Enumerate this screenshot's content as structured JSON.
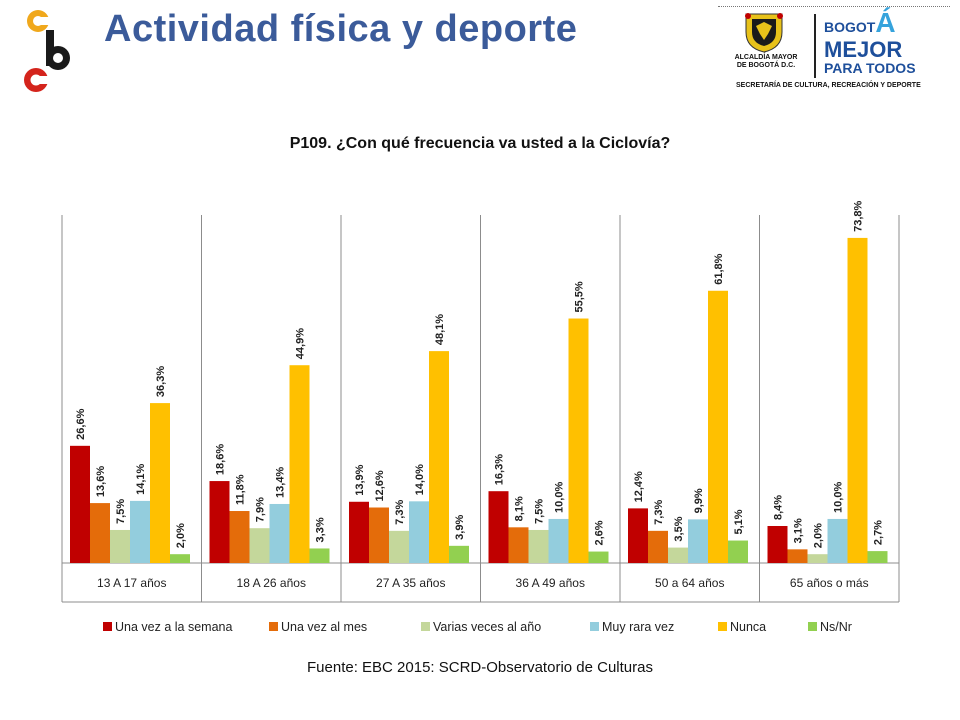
{
  "header": {
    "title": "Actividad física y deporte"
  },
  "logo_right": {
    "alcaldia_line1": "ALCALDÍA MAYOR",
    "alcaldia_line2": "DE BOGOTÁ D.C.",
    "bogota_small": "BOGOT",
    "bogota_accent": "Á",
    "bogota_mid": "MEJOR",
    "bogota_low": "PARA TODOS",
    "secretaria": "SECRETARÍA DE CULTURA, RECREACIÓN Y DEPORTE"
  },
  "chart_data": {
    "type": "bar",
    "title": "P109. ¿Con qué frecuencia va usted a la Ciclovía?",
    "categories": [
      "13 A 17 años",
      "18 A 26 años",
      "27 A 35 años",
      "36 A 49 años",
      "50 a 64 años",
      "65 años o más"
    ],
    "series": [
      {
        "name": "Una vez a la semana",
        "color": "#c00000",
        "values": [
          26.6,
          18.6,
          13.9,
          16.3,
          12.4,
          8.4
        ],
        "labels": [
          "26,6%",
          "18,6%",
          "13,9%",
          "16,3%",
          "12,4%",
          "8,4%"
        ]
      },
      {
        "name": "Una vez al mes",
        "color": "#e46c0a",
        "values": [
          13.6,
          11.8,
          12.6,
          8.1,
          7.3,
          3.1
        ],
        "labels": [
          "13,6%",
          "11,8%",
          "12,6%",
          "8,1%",
          "7,3%",
          "3,1%"
        ]
      },
      {
        "name": "Varias veces al año",
        "color": "#c4d79b",
        "values": [
          7.5,
          7.9,
          7.3,
          7.5,
          3.5,
          2.0
        ],
        "labels": [
          "7,5%",
          "7,9%",
          "7,3%",
          "7,5%",
          "3,5%",
          "2,0%"
        ]
      },
      {
        "name": "Muy rara vez",
        "color": "#93cddd",
        "values": [
          14.1,
          13.4,
          14.0,
          10.0,
          9.9,
          10.0
        ],
        "labels": [
          "14,1%",
          "13,4%",
          "14,0%",
          "10,0%",
          "9,9%",
          "10,0%"
        ]
      },
      {
        "name": "Nunca",
        "color": "#ffc000",
        "values": [
          36.3,
          44.9,
          48.1,
          55.5,
          61.8,
          73.8
        ],
        "labels": [
          "36,3%",
          "44,9%",
          "48,1%",
          "55,5%",
          "61,8%",
          "73,8%"
        ]
      },
      {
        "name": "Ns/Nr",
        "color": "#92d050",
        "values": [
          2.0,
          3.3,
          3.9,
          2.6,
          5.1,
          2.7
        ],
        "labels": [
          "2,0%",
          "3,3%",
          "3,9%",
          "2,6%",
          "5,1%",
          "2,7%"
        ]
      }
    ],
    "ylim": [
      0,
      80
    ],
    "grid": false,
    "legend": "bottom",
    "xlabel": "",
    "ylabel": ""
  },
  "footer": {
    "source": "Fuente: EBC 2015: SCRD-Observatorio de Culturas"
  }
}
